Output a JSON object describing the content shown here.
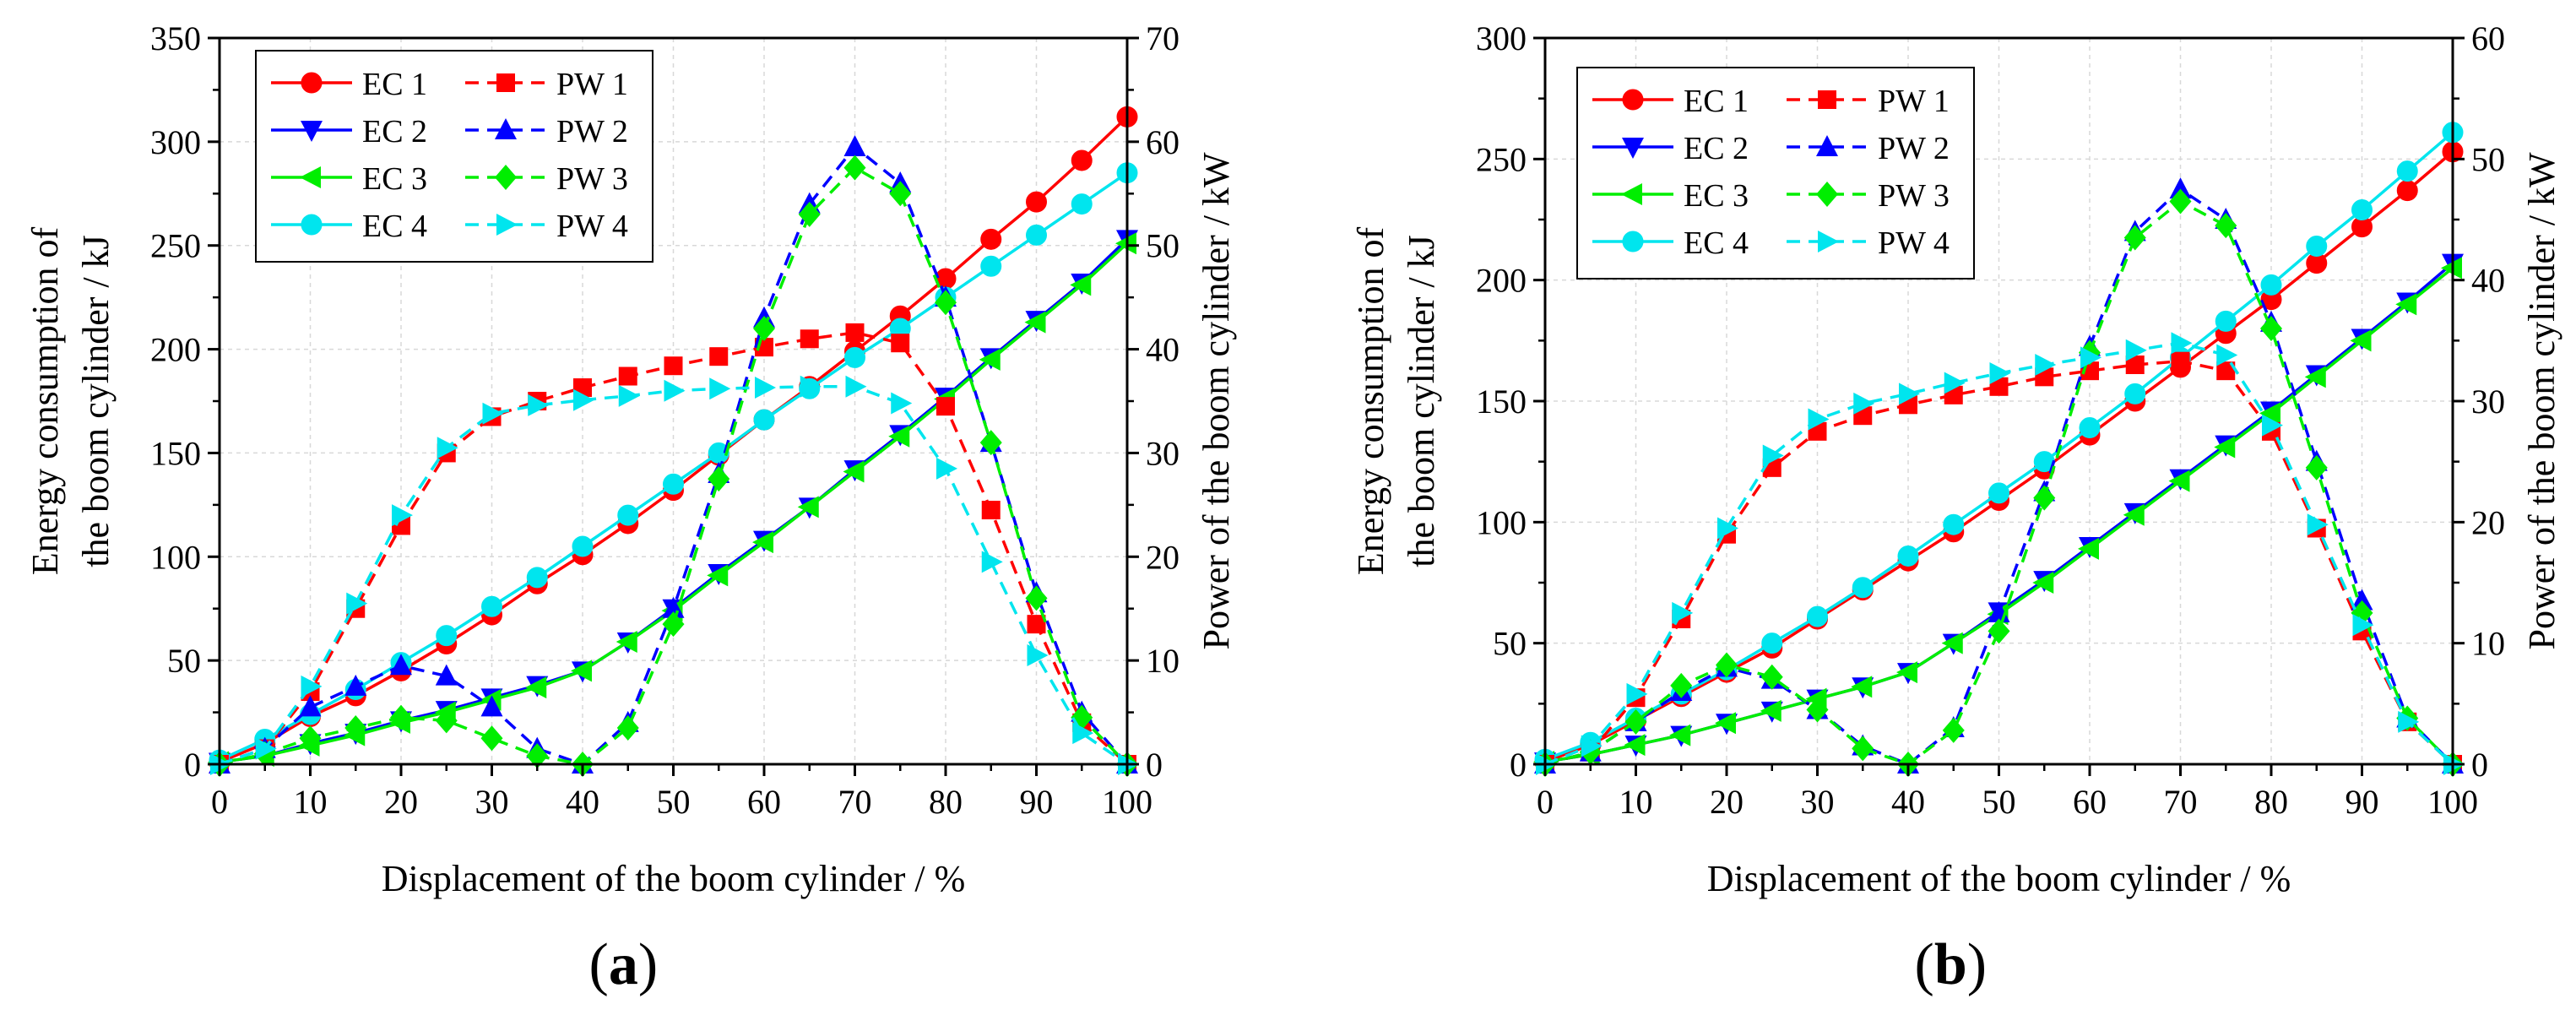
{
  "chart_data": [
    {
      "panel_label": "(a)",
      "type": "line",
      "xlabel": "Displacement of the boom cylinder / %",
      "ylabel_left_line1": "Energy consumption of",
      "ylabel_left_line2": "the boom cylinder / kJ",
      "ylabel_right": "Power of the boom cylinder / kW",
      "xlim": [
        0,
        100
      ],
      "ylim_left": [
        0,
        350
      ],
      "ylim_right": [
        0,
        70
      ],
      "xticks": [
        0,
        10,
        20,
        30,
        40,
        50,
        60,
        70,
        80,
        90,
        100
      ],
      "yticks_left": [
        0,
        50,
        100,
        150,
        200,
        250,
        300,
        350
      ],
      "yticks_right": [
        0,
        10,
        20,
        30,
        40,
        50,
        60,
        70
      ],
      "legend_position": "top-left",
      "x": [
        0,
        5,
        10,
        15,
        20,
        25,
        30,
        35,
        40,
        45,
        50,
        55,
        60,
        65,
        70,
        75,
        80,
        85,
        90,
        95,
        100
      ],
      "series": [
        {
          "name": "EC 1",
          "axis": "left",
          "color": "#ff0000",
          "style": "solid",
          "marker": "circle",
          "values": [
            1,
            10,
            23,
            33,
            45,
            58,
            72,
            87,
            101,
            116,
            132,
            149,
            166,
            182,
            199,
            216,
            234,
            253,
            271,
            291,
            312
          ]
        },
        {
          "name": "EC 2",
          "axis": "left",
          "color": "#0000ff",
          "style": "solid",
          "marker": "triangle-down",
          "values": [
            1,
            4,
            10,
            15,
            21,
            26,
            32,
            38,
            45,
            59,
            75,
            92,
            108,
            124,
            142,
            159,
            177,
            196,
            214,
            232,
            253
          ]
        },
        {
          "name": "EC 3",
          "axis": "left",
          "color": "#00ee00",
          "style": "solid",
          "marker": "triangle-left",
          "values": [
            1,
            4,
            9,
            14,
            20,
            25,
            31,
            37,
            45,
            59,
            74,
            91,
            107,
            124,
            141,
            158,
            176,
            195,
            213,
            231,
            251
          ]
        },
        {
          "name": "EC 4",
          "axis": "left",
          "color": "#00e5ee",
          "style": "solid",
          "marker": "circle",
          "values": [
            2,
            12,
            24,
            36,
            49,
            62,
            76,
            90,
            105,
            120,
            135,
            150,
            166,
            181,
            196,
            210,
            225,
            240,
            255,
            270,
            285
          ]
        },
        {
          "name": "PW 1",
          "axis": "right",
          "color": "#ff0000",
          "style": "dashed",
          "marker": "square",
          "values": [
            0,
            1.5,
            7,
            15,
            23,
            30,
            33.5,
            35,
            36.3,
            37.4,
            38.4,
            39.3,
            40.2,
            41,
            41.6,
            40.6,
            34.5,
            24.5,
            13.5,
            4,
            0
          ]
        },
        {
          "name": "PW 2",
          "axis": "right",
          "color": "#0000ff",
          "style": "dashed",
          "marker": "triangle-up",
          "values": [
            0,
            1.5,
            5.5,
            7.5,
            9.5,
            8.5,
            5.5,
            1.5,
            0,
            4,
            15,
            28,
            43,
            54,
            59.5,
            56,
            45,
            31,
            16.5,
            5,
            0
          ]
        },
        {
          "name": "PW 3",
          "axis": "right",
          "color": "#00ee00",
          "style": "dashed",
          "marker": "diamond",
          "values": [
            0,
            1,
            2.5,
            3.5,
            4.5,
            4.2,
            2.5,
            0.8,
            0,
            3.5,
            13.5,
            27.5,
            42,
            53,
            57.5,
            55,
            44.5,
            31,
            16,
            4.5,
            0
          ]
        },
        {
          "name": "PW 4",
          "axis": "right",
          "color": "#00e5ee",
          "style": "dashed",
          "marker": "triangle-right",
          "values": [
            0,
            1.5,
            7.5,
            15.5,
            24,
            30.5,
            33.8,
            34.6,
            35.1,
            35.5,
            36,
            36.2,
            36.3,
            36.4,
            36.4,
            34.8,
            28.5,
            19.5,
            10.5,
            3,
            0
          ]
        }
      ]
    },
    {
      "panel_label": "(b)",
      "type": "line",
      "xlabel": "Displacement of the boom cylinder / %",
      "ylabel_left_line1": "Energy consumption of",
      "ylabel_left_line2": "the boom cylinder / kJ",
      "ylabel_right": "Power of the boom cylinder / kW",
      "xlim": [
        0,
        100
      ],
      "ylim_left": [
        0,
        300
      ],
      "ylim_right": [
        0,
        60
      ],
      "xticks": [
        0,
        10,
        20,
        30,
        40,
        50,
        60,
        70,
        80,
        90,
        100
      ],
      "yticks_left": [
        0,
        50,
        100,
        150,
        200,
        250,
        300
      ],
      "yticks_right": [
        0,
        10,
        20,
        30,
        40,
        50,
        60
      ],
      "legend_position": "top-left",
      "x": [
        0,
        5,
        10,
        15,
        20,
        25,
        30,
        35,
        40,
        45,
        50,
        55,
        60,
        65,
        70,
        75,
        80,
        85,
        90,
        95,
        100
      ],
      "series": [
        {
          "name": "EC 1",
          "axis": "left",
          "color": "#ff0000",
          "style": "solid",
          "marker": "circle",
          "values": [
            1,
            8,
            18,
            28,
            38,
            48,
            60,
            72,
            84,
            96,
            109,
            122,
            136,
            150,
            164,
            178,
            192,
            207,
            222,
            237,
            253
          ]
        },
        {
          "name": "EC 2",
          "axis": "left",
          "color": "#0000ff",
          "style": "solid",
          "marker": "triangle-down",
          "values": [
            1,
            4,
            8,
            12,
            17,
            22,
            27,
            32,
            38,
            50,
            63,
            76,
            90,
            104,
            118,
            132,
            146,
            161,
            176,
            191,
            207
          ]
        },
        {
          "name": "EC 3",
          "axis": "left",
          "color": "#00ee00",
          "style": "solid",
          "marker": "triangle-left",
          "values": [
            1,
            4,
            8,
            12,
            17,
            22,
            27,
            32,
            38,
            50,
            62,
            75,
            89,
            103,
            117,
            131,
            145,
            160,
            175,
            190,
            205
          ]
        },
        {
          "name": "EC 4",
          "axis": "left",
          "color": "#00e5ee",
          "style": "solid",
          "marker": "circle",
          "values": [
            2,
            9,
            19,
            29,
            39,
            50,
            61,
            73,
            86,
            99,
            112,
            125,
            139,
            153,
            168,
            183,
            198,
            214,
            229,
            245,
            261
          ]
        },
        {
          "name": "PW 1",
          "axis": "right",
          "color": "#ff0000",
          "style": "dashed",
          "marker": "square",
          "values": [
            0,
            1,
            5.5,
            12,
            19,
            24.5,
            27.5,
            28.8,
            29.7,
            30.5,
            31.2,
            32,
            32.5,
            33,
            33.3,
            32.5,
            27.5,
            19.5,
            11,
            3.5,
            0
          ]
        },
        {
          "name": "PW 2",
          "axis": "right",
          "color": "#0000ff",
          "style": "dashed",
          "marker": "triangle-up",
          "values": [
            0,
            1,
            3.5,
            6,
            8,
            7,
            4.5,
            1.5,
            0,
            3,
            12.5,
            22.5,
            34.5,
            44,
            47.5,
            45,
            36.5,
            25,
            13.5,
            3.8,
            0
          ]
        },
        {
          "name": "PW 3",
          "axis": "right",
          "color": "#00ee00",
          "style": "dashed",
          "marker": "diamond",
          "values": [
            0,
            1,
            3.5,
            6.5,
            8.2,
            7.2,
            4.5,
            1.3,
            0,
            2.8,
            11,
            22,
            34,
            43.5,
            46.5,
            44.5,
            36,
            24.5,
            12.5,
            3.8,
            0
          ]
        },
        {
          "name": "PW 4",
          "axis": "right",
          "color": "#00e5ee",
          "style": "dashed",
          "marker": "triangle-right",
          "values": [
            0,
            1.5,
            5.8,
            12.5,
            19.5,
            25.5,
            28.5,
            29.8,
            30.6,
            31.5,
            32.3,
            33,
            33.6,
            34.2,
            34.8,
            33.8,
            28,
            19.8,
            11.5,
            3.5,
            0
          ]
        }
      ]
    }
  ]
}
